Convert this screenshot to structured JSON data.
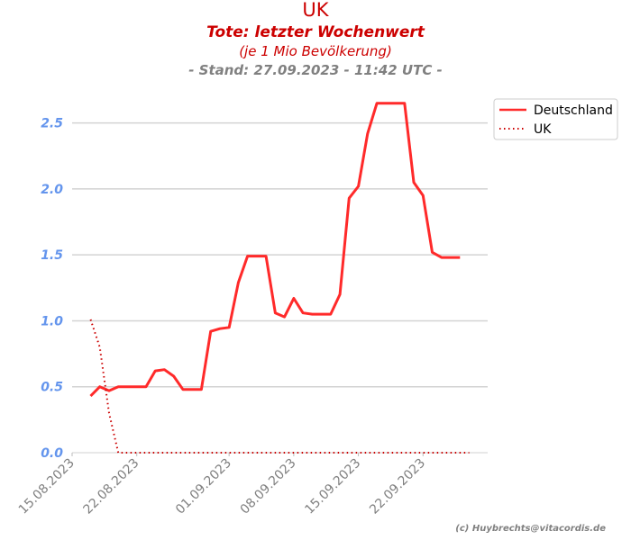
{
  "chart_data": {
    "type": "line",
    "title": "UK",
    "subtitle": "Tote: letzter Wochenwert",
    "subtitle2": "(je 1 Mio Bevölkerung)",
    "stand": "- Stand: 27.09.2023 - 11:42 UTC -",
    "credit": "(c) Huybrechts@vitacordis.de",
    "ylim": [
      0,
      2.75
    ],
    "yticks": [
      0.0,
      0.5,
      1.0,
      1.5,
      2.0,
      2.5
    ],
    "ytick_labels": [
      "0.0",
      "0.5",
      "1.0",
      "1.5",
      "2.0",
      "2.5"
    ],
    "xlim": [
      "2023-08-15",
      "2023-09-29"
    ],
    "xticks": [
      "2023-08-15",
      "2023-08-22",
      "2023-09-01",
      "2023-09-08",
      "2023-09-15",
      "2023-09-22"
    ],
    "xtick_labels": [
      "15.08.2023",
      "22.08.2023",
      "01.09.2023",
      "08.09.2023",
      "15.09.2023",
      "22.09.2023"
    ],
    "grid": "horizontal",
    "legend_position": "outside-top-right",
    "series": [
      {
        "name": "Deutschland",
        "color": "#ff2a2a",
        "style": "solid",
        "x": [
          "2023-08-17",
          "2023-08-18",
          "2023-08-19",
          "2023-08-20",
          "2023-08-21",
          "2023-08-22",
          "2023-08-23",
          "2023-08-24",
          "2023-08-25",
          "2023-08-26",
          "2023-08-27",
          "2023-08-28",
          "2023-08-29",
          "2023-08-30",
          "2023-08-31",
          "2023-09-01",
          "2023-09-02",
          "2023-09-03",
          "2023-09-04",
          "2023-09-05",
          "2023-09-06",
          "2023-09-07",
          "2023-09-08",
          "2023-09-09",
          "2023-09-10",
          "2023-09-11",
          "2023-09-12",
          "2023-09-13",
          "2023-09-14",
          "2023-09-15",
          "2023-09-16",
          "2023-09-17",
          "2023-09-18",
          "2023-09-19",
          "2023-09-20",
          "2023-09-21",
          "2023-09-22",
          "2023-09-23",
          "2023-09-24",
          "2023-09-25",
          "2023-09-26"
        ],
        "values": [
          0.43,
          0.5,
          0.47,
          0.5,
          0.5,
          0.5,
          0.5,
          0.62,
          0.63,
          0.58,
          0.48,
          0.48,
          0.48,
          0.92,
          0.94,
          0.95,
          1.29,
          1.49,
          1.49,
          1.49,
          1.06,
          1.03,
          1.17,
          1.06,
          1.05,
          1.05,
          1.05,
          1.2,
          1.93,
          2.02,
          2.42,
          2.65,
          2.65,
          2.65,
          2.65,
          2.05,
          1.95,
          1.52,
          1.48,
          1.48,
          1.48
        ]
      },
      {
        "name": "UK",
        "color": "#cc0000",
        "style": "dotted",
        "x": [
          "2023-08-17",
          "2023-08-18",
          "2023-08-19",
          "2023-08-20",
          "2023-08-21",
          "2023-08-22",
          "2023-08-23",
          "2023-08-24",
          "2023-08-25",
          "2023-08-26",
          "2023-08-27",
          "2023-08-28",
          "2023-08-29",
          "2023-08-30",
          "2023-08-31",
          "2023-09-01",
          "2023-09-02",
          "2023-09-03",
          "2023-09-04",
          "2023-09-05",
          "2023-09-06",
          "2023-09-07",
          "2023-09-08",
          "2023-09-09",
          "2023-09-10",
          "2023-09-11",
          "2023-09-12",
          "2023-09-13",
          "2023-09-14",
          "2023-09-15",
          "2023-09-16",
          "2023-09-17",
          "2023-09-18",
          "2023-09-19",
          "2023-09-20",
          "2023-09-21",
          "2023-09-22",
          "2023-09-23",
          "2023-09-24",
          "2023-09-25",
          "2023-09-26",
          "2023-09-27"
        ],
        "values": [
          1.01,
          0.8,
          0.3,
          0.0,
          0.0,
          0.0,
          0.0,
          0.0,
          0.0,
          0.0,
          0.0,
          0.0,
          0.0,
          0.0,
          0.0,
          0.0,
          0.0,
          0.0,
          0.0,
          0.0,
          0.0,
          0.0,
          0.0,
          0.0,
          0.0,
          0.0,
          0.0,
          0.0,
          0.0,
          0.0,
          0.0,
          0.0,
          0.0,
          0.0,
          0.0,
          0.0,
          0.0,
          0.0,
          0.0,
          0.0,
          0.0,
          0.0
        ]
      }
    ]
  }
}
